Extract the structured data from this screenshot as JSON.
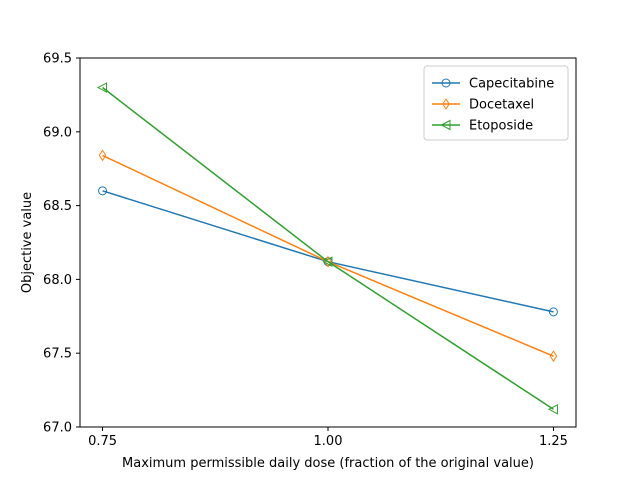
{
  "chart_data": {
    "type": "line",
    "title": "",
    "xlabel": "Maximum permissible daily dose (fraction of the original value)",
    "ylabel": "Objective value",
    "x": [
      0.75,
      1.0,
      1.25
    ],
    "x_tick_labels": [
      "0.75",
      "1.00",
      "1.25"
    ],
    "xlim": [
      0.725,
      1.275
    ],
    "ylim": [
      67.0,
      69.5
    ],
    "y_ticks": [
      67.0,
      67.5,
      68.0,
      68.5,
      69.0,
      69.5
    ],
    "y_tick_labels": [
      "67.0",
      "67.5",
      "68.0",
      "68.5",
      "69.0",
      "69.5"
    ],
    "grid": false,
    "legend_position": "top-right",
    "series": [
      {
        "name": "Capecitabine",
        "values": [
          68.6,
          68.12,
          67.78
        ],
        "color": "#1f77b4",
        "marker": "circle"
      },
      {
        "name": "Docetaxel",
        "values": [
          68.84,
          68.12,
          67.48
        ],
        "color": "#ff7f0e",
        "marker": "thin-diamond"
      },
      {
        "name": "Etoposide",
        "values": [
          69.3,
          68.12,
          67.12
        ],
        "color": "#2ca02c",
        "marker": "triangle-left"
      }
    ]
  }
}
